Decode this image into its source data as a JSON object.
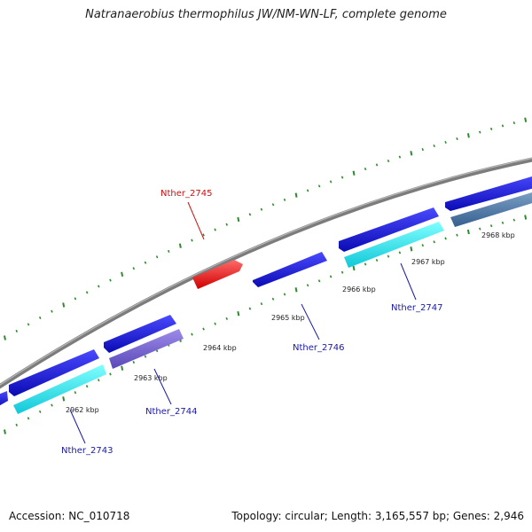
{
  "title": "Natranaerobius thermophilus JW/NM-WN-LF, complete genome",
  "footer": {
    "accession": "Accession: NC_010718",
    "summary": "Topology: circular; Length: 3,165,557 bp; Genes: 2,946"
  },
  "colors": {
    "backbone": "#8a8a8a",
    "tick_green": "#2e8b2e",
    "forward_cds": "#1515d6",
    "reverse_cds": "#22e8ee",
    "rna": "#ff1a1a",
    "reverse_cds_alt1": "#7a5fd0",
    "reverse_cds_alt2": "#4a7bb0",
    "label_blue": "#1a1aa8",
    "label_red": "#cc1111"
  },
  "map": {
    "scale_kbp": [
      "2962 kbp",
      "2963 kbp",
      "2964 kbp",
      "2965 kbp",
      "2966 kbp",
      "2967 kbp",
      "2968 kbp"
    ],
    "genes": [
      {
        "label": "Nther_2743",
        "color_key": "reverse_cds"
      },
      {
        "label": "Nther_2744",
        "color_key": "reverse_cds_alt1"
      },
      {
        "label": "Nther_2745",
        "color_key": "rna"
      },
      {
        "label": "Nther_2746",
        "color_key": "forward_cds"
      },
      {
        "label": "Nther_2747",
        "color_key": "reverse_cds"
      }
    ]
  }
}
